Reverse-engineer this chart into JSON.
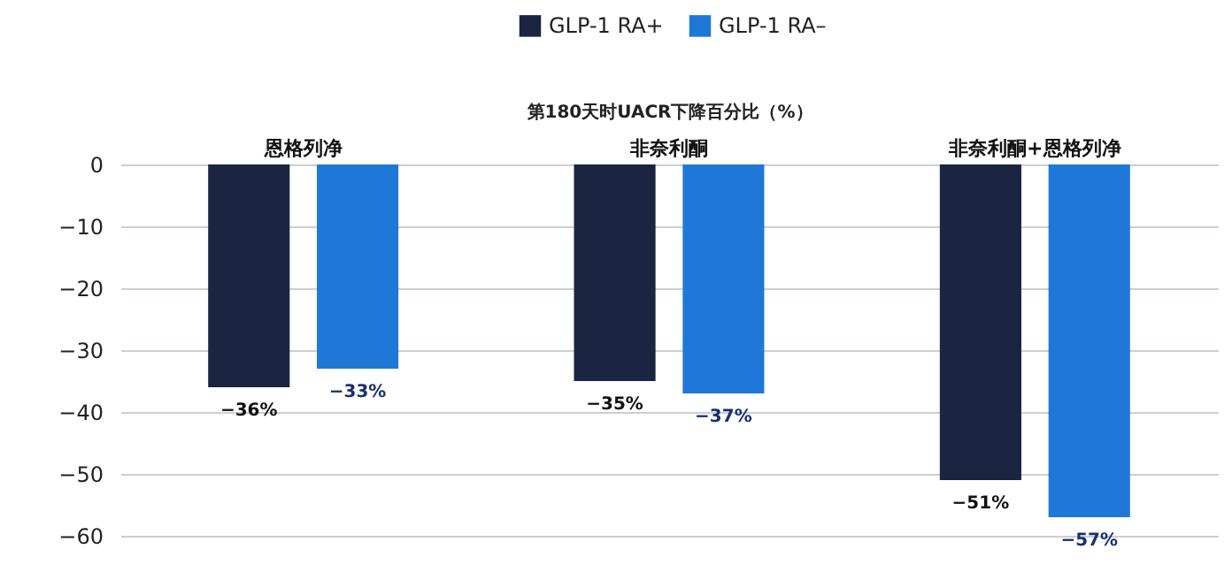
{
  "chart_data": {
    "type": "bar",
    "title": "第180天时UACR下降百分比（%）",
    "categories": [
      "恩格列净",
      "非奈利酮",
      "非奈利酮+恩格列净"
    ],
    "series": [
      {
        "name": "GLP-1 RA+",
        "color": "#1b2440",
        "values": [
          -36,
          -35,
          -51
        ],
        "value_labels": [
          "−36%",
          "−35%",
          "−51%"
        ]
      },
      {
        "name": "GLP-1 RA–",
        "color": "#1f78d8",
        "values": [
          -33,
          -37,
          -57
        ],
        "value_labels": [
          "−33%",
          "−37%",
          "−57%"
        ]
      }
    ],
    "ylim": [
      -60,
      0
    ],
    "yticks": [
      0,
      {
        "value": -10,
        "label": "−10"
      },
      {
        "value": -20,
        "label": "−20"
      },
      {
        "value": -30,
        "label": "−30"
      },
      {
        "value": -40,
        "label": "−40"
      },
      {
        "value": -50,
        "label": "−50"
      },
      {
        "value": -60,
        "label": "−60"
      }
    ],
    "grid": "y",
    "legend": "top"
  }
}
